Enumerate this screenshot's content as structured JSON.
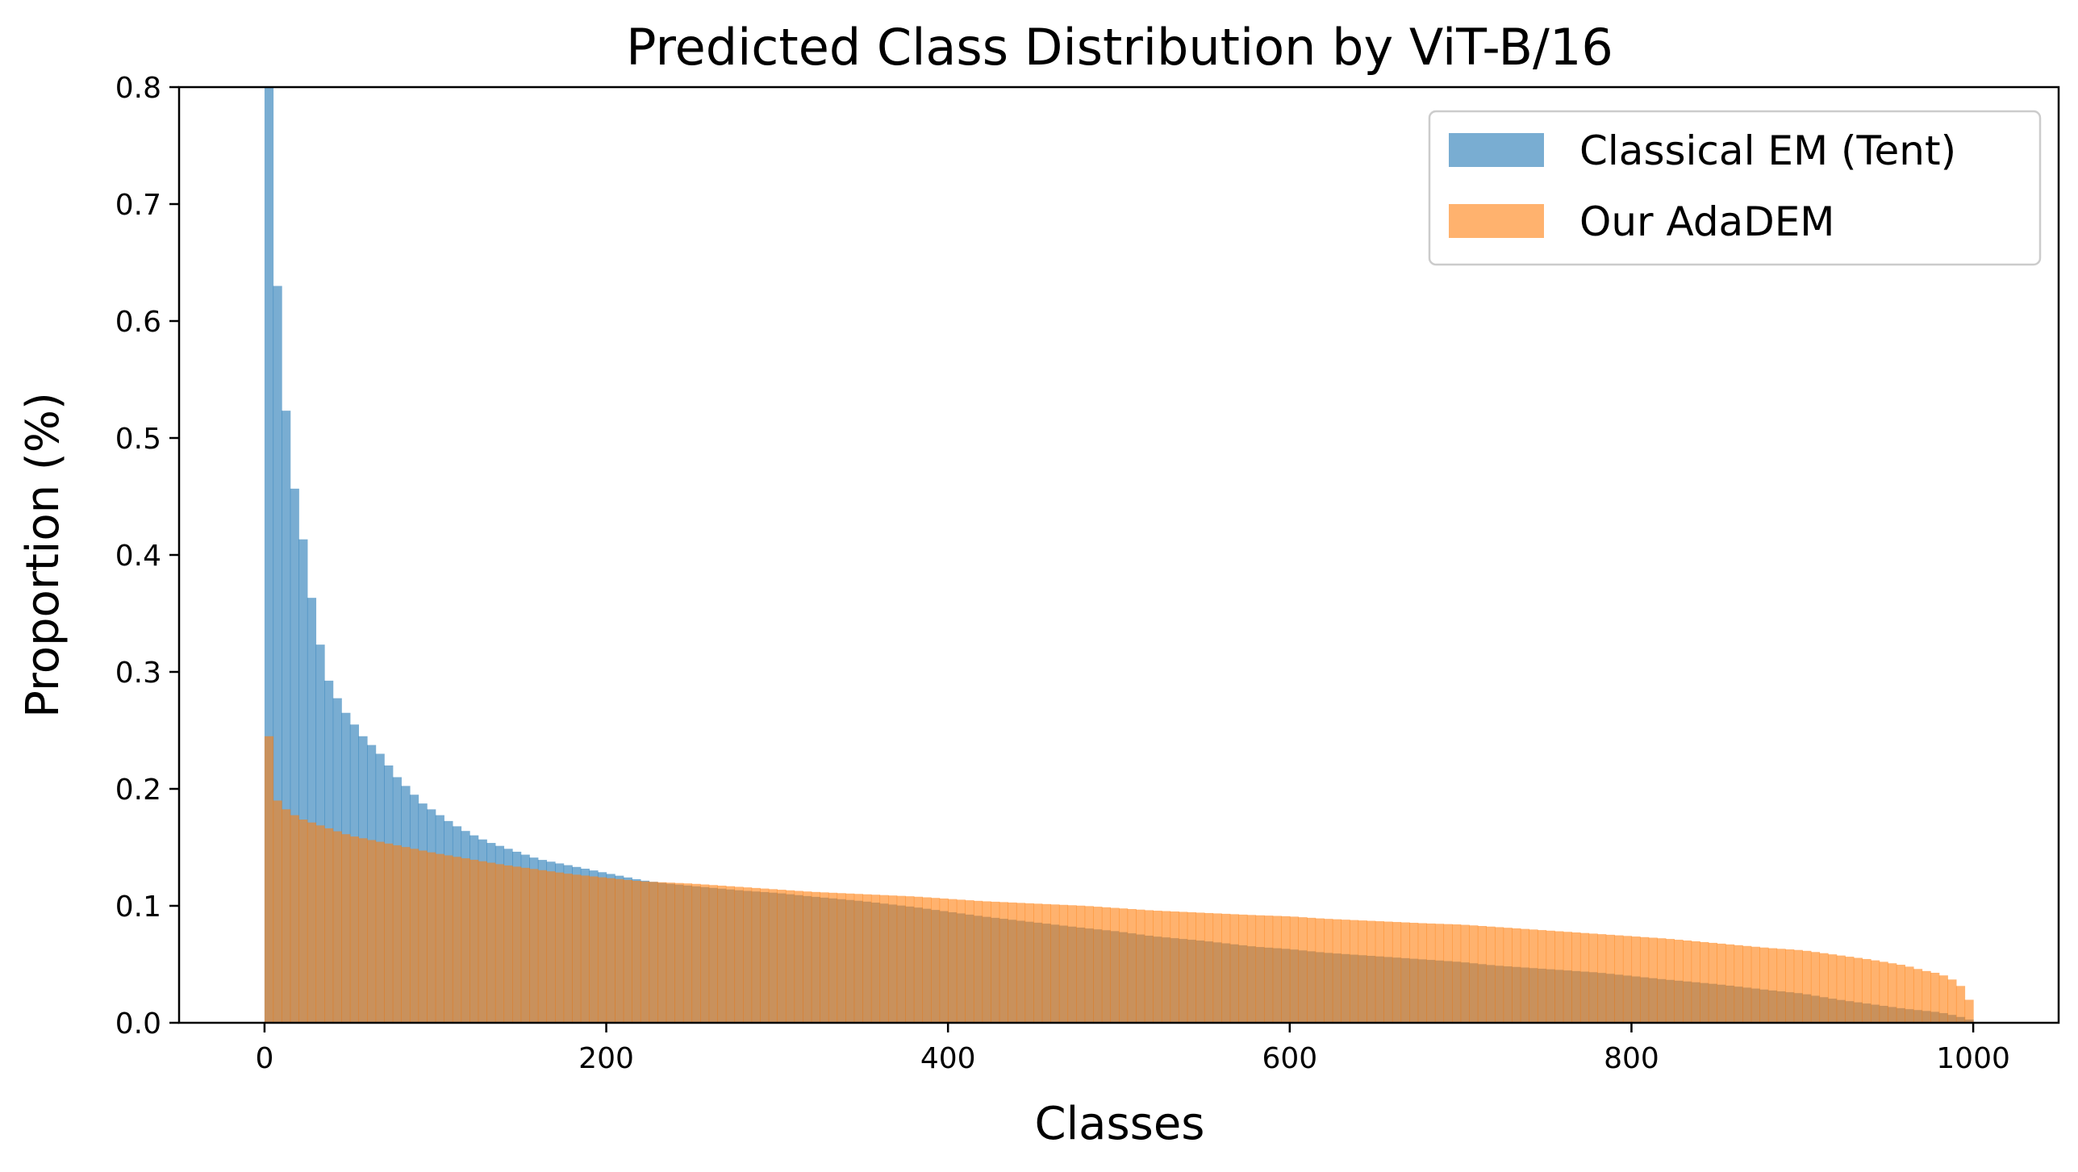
{
  "chart_data": {
    "type": "bar",
    "title": "Predicted Class Distribution by ViT-B/16",
    "xlabel": "Classes",
    "ylabel": "Proportion (%)",
    "xlim": [
      -50,
      1050
    ],
    "ylim": [
      0,
      0.8
    ],
    "xticks": [
      0,
      200,
      400,
      600,
      800,
      1000
    ],
    "xtick_labels": [
      "0",
      "200",
      "400",
      "600",
      "800",
      "1000"
    ],
    "yticks": [
      0.0,
      0.1,
      0.2,
      0.3,
      0.4,
      0.5,
      0.6,
      0.7,
      0.8
    ],
    "ytick_labels": [
      "0.0",
      "0.1",
      "0.2",
      "0.3",
      "0.4",
      "0.5",
      "0.6",
      "0.7",
      "0.8"
    ],
    "grid": false,
    "legend_position": "top-right",
    "series": [
      {
        "name": "Classical EM (Tent)",
        "color": "#1f77b4",
        "opacity": 0.6,
        "x": [
          0,
          2,
          5,
          7,
          10,
          12,
          15,
          18,
          20,
          23,
          25,
          28,
          30,
          33,
          35,
          40,
          45,
          50,
          55,
          60,
          65,
          70,
          75,
          80,
          85,
          90,
          95,
          100,
          110,
          120,
          130,
          140,
          150,
          160,
          170,
          180,
          190,
          200,
          210,
          220,
          230,
          250,
          280,
          300,
          320,
          350,
          380,
          400,
          420,
          450,
          480,
          500,
          520,
          550,
          580,
          600,
          620,
          650,
          680,
          700,
          720,
          750,
          780,
          800,
          820,
          850,
          880,
          900,
          920,
          940,
          960,
          980,
          990,
          995,
          999
        ],
        "values": [
          0.8,
          0.8,
          0.67,
          0.64,
          0.58,
          0.53,
          0.49,
          0.45,
          0.43,
          0.41,
          0.38,
          0.36,
          0.34,
          0.32,
          0.3,
          0.285,
          0.27,
          0.26,
          0.25,
          0.24,
          0.235,
          0.225,
          0.215,
          0.205,
          0.2,
          0.19,
          0.185,
          0.18,
          0.17,
          0.162,
          0.155,
          0.15,
          0.145,
          0.14,
          0.137,
          0.134,
          0.131,
          0.128,
          0.125,
          0.122,
          0.12,
          0.117,
          0.113,
          0.111,
          0.108,
          0.104,
          0.099,
          0.095,
          0.091,
          0.086,
          0.081,
          0.078,
          0.074,
          0.07,
          0.065,
          0.063,
          0.06,
          0.057,
          0.054,
          0.052,
          0.049,
          0.046,
          0.043,
          0.04,
          0.037,
          0.033,
          0.028,
          0.025,
          0.02,
          0.016,
          0.012,
          0.009,
          0.006,
          0.004,
          0.002
        ]
      },
      {
        "name": "Our AdaDEM",
        "color": "#ff7f0e",
        "opacity": 0.6,
        "x": [
          0,
          1,
          2,
          3,
          5,
          10,
          20,
          30,
          40,
          50,
          60,
          70,
          80,
          90,
          100,
          120,
          140,
          160,
          180,
          200,
          220,
          250,
          280,
          300,
          320,
          350,
          380,
          400,
          420,
          450,
          480,
          500,
          520,
          550,
          580,
          600,
          620,
          650,
          680,
          700,
          720,
          750,
          780,
          800,
          820,
          850,
          880,
          900,
          920,
          940,
          960,
          970,
          980,
          985,
          990,
          995,
          998,
          999
        ],
        "values": [
          0.245,
          0.235,
          0.225,
          0.205,
          0.195,
          0.185,
          0.175,
          0.17,
          0.165,
          0.16,
          0.157,
          0.154,
          0.151,
          0.148,
          0.145,
          0.14,
          0.135,
          0.131,
          0.127,
          0.124,
          0.121,
          0.119,
          0.116,
          0.114,
          0.112,
          0.11,
          0.108,
          0.106,
          0.104,
          0.102,
          0.1,
          0.098,
          0.096,
          0.094,
          0.092,
          0.091,
          0.089,
          0.087,
          0.085,
          0.084,
          0.082,
          0.079,
          0.076,
          0.074,
          0.072,
          0.068,
          0.064,
          0.062,
          0.058,
          0.054,
          0.049,
          0.045,
          0.042,
          0.039,
          0.035,
          0.028,
          0.018,
          0.005
        ]
      }
    ]
  }
}
